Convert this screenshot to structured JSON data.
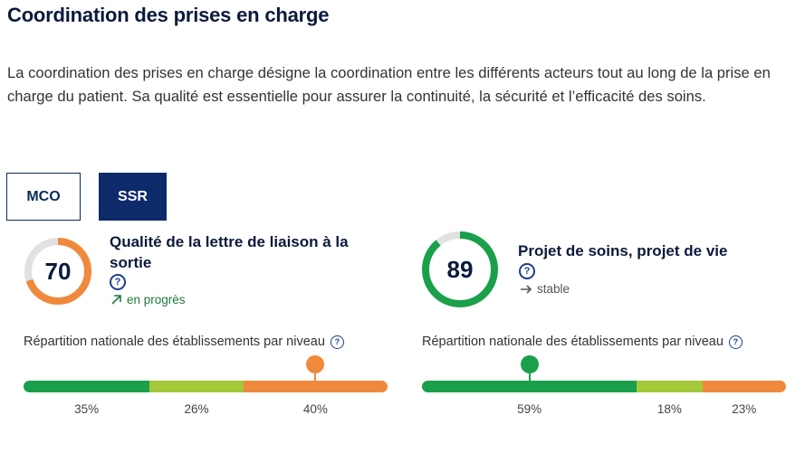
{
  "page": {
    "title": "Coordination des prises en charge",
    "intro": "La coordination des prises en charge désigne la coordination entre les différents acteurs tout au long de la prise en charge du patient. Sa qualité est essentielle pour assurer la continuité, la sécurité et l’efficacité des soins."
  },
  "tabs": {
    "mco": "MCO",
    "ssr": "SSR",
    "active": "SSR"
  },
  "colors": {
    "green": "#1aa04a",
    "lightgreen": "#a5c73a",
    "orange": "#f0893c",
    "ringTrack": "#e1e1e1",
    "navy": "#0d2a6b"
  },
  "indicators": [
    {
      "score": "70",
      "score_value": 70,
      "score_color": "#f0893c",
      "title": "Qualité de la lettre de liaison à la sortie",
      "help_icon": "question-circle-icon",
      "trend_icon": "arrow-up-right-icon",
      "trend": "en progrès",
      "distribution_label": "Répartition nationale des établissements par niveau",
      "distribution": [
        {
          "level": "green",
          "share": 35,
          "label": "35%"
        },
        {
          "level": "lightgreen",
          "share": 26,
          "label": "26%"
        },
        {
          "level": "orange",
          "share": 40,
          "label": "40%"
        }
      ],
      "marker_level": "orange"
    },
    {
      "score": "89",
      "score_value": 89,
      "score_color": "#1aa04a",
      "title": "Projet de soins, projet de vie",
      "help_icon": "question-circle-icon",
      "trend_icon": "arrow-right-icon",
      "trend": "stable",
      "distribution_label": "Répartition nationale des établissements par niveau",
      "distribution": [
        {
          "level": "green",
          "share": 59,
          "label": "59%"
        },
        {
          "level": "lightgreen",
          "share": 18,
          "label": "18%"
        },
        {
          "level": "orange",
          "share": 23,
          "label": "23%"
        }
      ],
      "marker_level": "green"
    }
  ]
}
